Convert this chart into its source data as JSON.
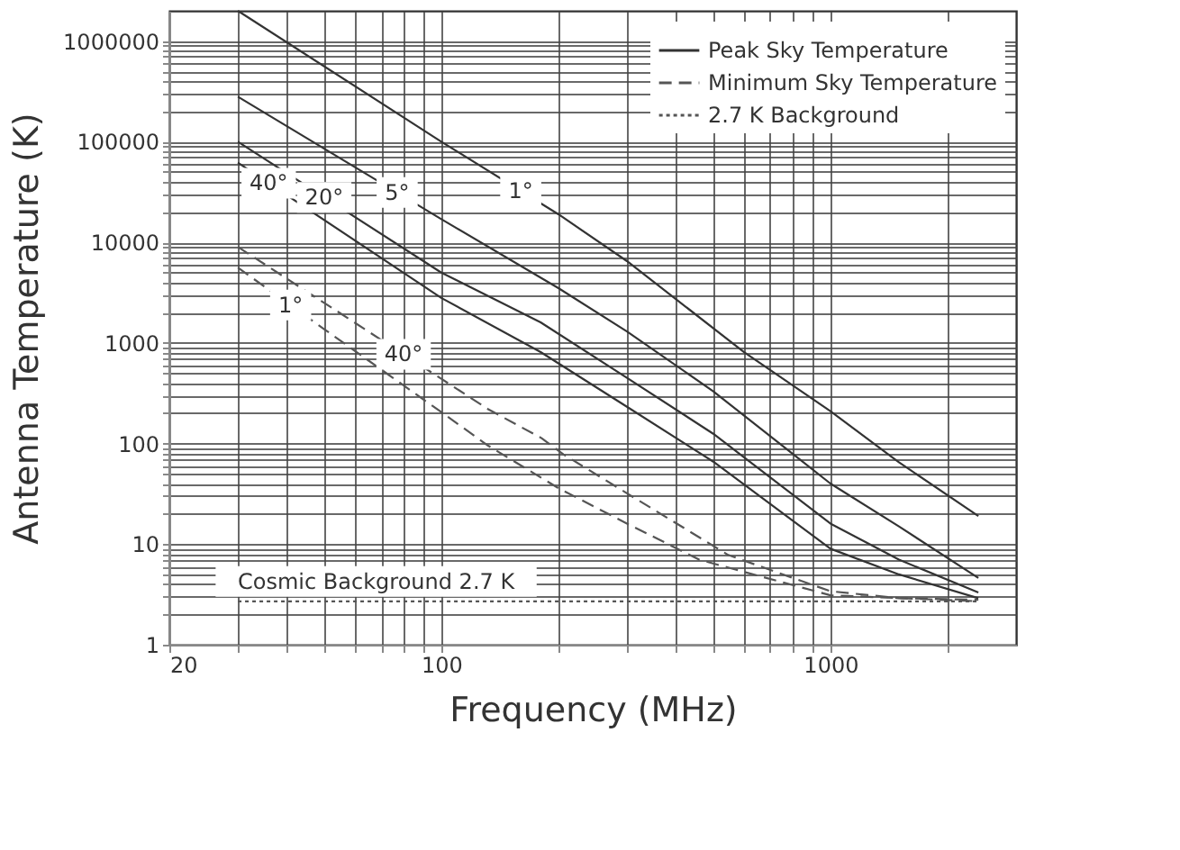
{
  "chart_data": {
    "type": "line",
    "xlabel": "Frequency (MHz)",
    "ylabel": "Antenna Temperature (K)",
    "log": "xy",
    "grid": true,
    "legend": "top right",
    "xlim": [
      20,
      3000
    ],
    "ylim": [
      1,
      2000000
    ],
    "xticks": [
      20,
      {
        "value": 30,
        "label": null
      },
      {
        "value": 40,
        "label": null
      },
      {
        "value": 50,
        "label": null
      },
      {
        "value": 60,
        "label": null
      },
      {
        "value": 70,
        "label": null
      },
      {
        "value": 80,
        "label": null
      },
      {
        "value": 90,
        "label": null
      },
      100,
      {
        "value": 200,
        "label": null
      },
      {
        "value": 300,
        "label": null
      },
      {
        "value": 400,
        "label": null
      },
      {
        "value": 500,
        "label": null
      },
      {
        "value": 600,
        "label": null
      },
      {
        "value": 700,
        "label": null
      },
      {
        "value": 800,
        "label": null
      },
      {
        "value": 900,
        "label": null
      },
      1000,
      {
        "value": 2000,
        "label": null
      }
    ],
    "yticks": [
      1,
      {
        "value": 2,
        "label": null
      },
      {
        "value": 3,
        "label": null
      },
      {
        "value": 4,
        "label": null
      },
      {
        "value": 5,
        "label": null
      },
      {
        "value": 6,
        "label": null
      },
      {
        "value": 7,
        "label": null
      },
      {
        "value": 8,
        "label": null
      },
      {
        "value": 9,
        "label": null
      },
      10,
      {
        "value": 20,
        "label": null
      },
      {
        "value": 30,
        "label": null
      },
      {
        "value": 40,
        "label": null
      },
      {
        "value": 50,
        "label": null
      },
      {
        "value": 60,
        "label": null
      },
      {
        "value": 70,
        "label": null
      },
      {
        "value": 80,
        "label": null
      },
      {
        "value": 90,
        "label": null
      },
      100,
      {
        "value": 200,
        "label": null
      },
      {
        "value": 300,
        "label": null
      },
      {
        "value": 400,
        "label": null
      },
      {
        "value": 500,
        "label": null
      },
      {
        "value": 600,
        "label": null
      },
      {
        "value": 700,
        "label": null
      },
      {
        "value": 800,
        "label": null
      },
      {
        "value": 900,
        "label": null
      },
      1000,
      {
        "value": 2000,
        "label": null
      },
      {
        "value": 3000,
        "label": null
      },
      {
        "value": 4000,
        "label": null
      },
      {
        "value": 5000,
        "label": null
      },
      {
        "value": 6000,
        "label": null
      },
      {
        "value": 7000,
        "label": null
      },
      {
        "value": 8000,
        "label": null
      },
      {
        "value": 9000,
        "label": null
      },
      10000,
      {
        "value": 20000,
        "label": null
      },
      {
        "value": 30000,
        "label": null
      },
      {
        "value": 40000,
        "label": null
      },
      {
        "value": 50000,
        "label": null
      },
      {
        "value": 60000,
        "label": null
      },
      {
        "value": 70000,
        "label": null
      },
      {
        "value": 80000,
        "label": null
      },
      {
        "value": 90000,
        "label": null
      },
      100000,
      {
        "value": 200000,
        "label": null
      },
      {
        "value": 300000,
        "label": null
      },
      {
        "value": 400000,
        "label": null
      },
      {
        "value": 500000,
        "label": null
      },
      {
        "value": 600000,
        "label": null
      },
      {
        "value": 700000,
        "label": null
      },
      {
        "value": 800000,
        "label": null
      },
      {
        "value": 900000,
        "label": null
      },
      1000000
    ],
    "series": [
      {
        "name": "Peak Sky Temperature",
        "color": "#333333",
        "line_style": "solid",
        "x": [
          30,
          100,
          200,
          300,
          600,
          1000,
          1500,
          2400
        ],
        "values": [
          2000000,
          100000,
          19000,
          6500,
          810,
          210,
          65,
          19
        ]
      },
      {
        "color": "#333333",
        "line_style": "solid",
        "x": [
          30,
          100,
          200,
          300,
          500,
          1000,
          1500,
          2400
        ],
        "values": [
          280000,
          17000,
          3500,
          1300,
          330,
          40,
          15,
          4.6
        ]
      },
      {
        "color": "#333333",
        "line_style": "solid",
        "x": [
          30,
          100,
          180,
          300,
          500,
          1000,
          1500,
          2400
        ],
        "values": [
          100000,
          5000,
          1600,
          450,
          125,
          16,
          7,
          3.3
        ]
      },
      {
        "color": "#333333",
        "line_style": "solid",
        "x": [
          30,
          100,
          180,
          300,
          500,
          1000,
          1500,
          2400
        ],
        "values": [
          62000,
          2800,
          810,
          232,
          66,
          9,
          5,
          2.9
        ]
      },
      {
        "name": "Minimum Sky Temperature",
        "color": "#555555",
        "line_style": "dashed",
        "x": [
          30,
          50,
          100,
          132,
          181,
          206,
          300,
          546,
          1000,
          1500,
          2400
        ],
        "values": [
          9000,
          2500,
          440,
          219,
          113,
          78,
          32,
          7.8,
          3.4,
          2.9,
          2.8
        ]
      },
      {
        "color": "#555555",
        "line_style": "dashed",
        "x": [
          30,
          50,
          100,
          132,
          200,
          300,
          460,
          1000,
          2400
        ],
        "values": [
          5600,
          1370,
          205,
          95,
          36,
          16,
          7,
          3.1,
          2.7
        ]
      },
      {
        "name": "2.7 K Background",
        "color": "#555555",
        "line_style": "dotted",
        "x": [
          30,
          2400
        ],
        "values": [
          2.7,
          2.7
        ]
      }
    ],
    "annotations": [
      {
        "text": "40°",
        "x": 36,
        "y": 38700
      },
      {
        "text": "20°",
        "x": 50,
        "y": 28000
      },
      {
        "text": "5°",
        "x": 77,
        "y": 31300
      },
      {
        "text": "1°",
        "x": 160,
        "y": 32400
      },
      {
        "text": "1°",
        "x": 41,
        "y": 2380
      },
      {
        "text": "40°",
        "x": 80,
        "y": 771
      },
      {
        "text": "Cosmic Background 2.7 K",
        "x": 68,
        "y": 2.7
      }
    ]
  }
}
